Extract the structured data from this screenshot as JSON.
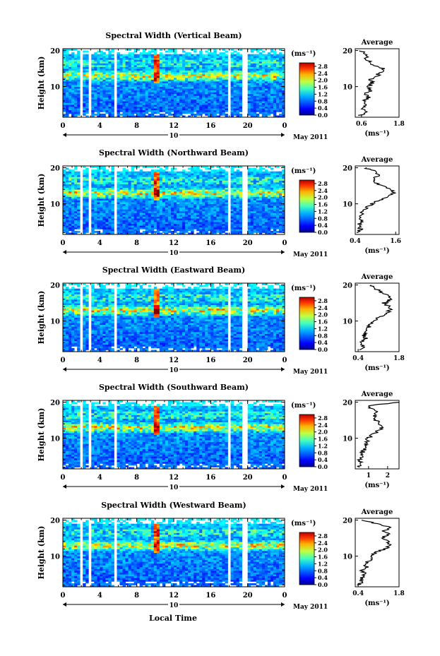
{
  "figure": {
    "xlabel": "Local Time",
    "date_label": "May 2011",
    "day_label": "10",
    "height_label": "Height (km)",
    "colorbar_unit": "(ms⁻¹)",
    "average_title": "Average",
    "average_unit": "(ms⁻¹)"
  },
  "chart_data": [
    {
      "type": "heatmap",
      "title": "Spectral Width (Vertical Beam)",
      "xlabel": "Local Time",
      "ylabel": "Height (km)",
      "x_ticks": [
        "0",
        "4",
        "8",
        "12",
        "16",
        "20",
        "0"
      ],
      "x_tick_values": [
        0,
        4,
        8,
        12,
        16,
        20,
        24
      ],
      "xlim": [
        0,
        24
      ],
      "y_ticks": [
        "20",
        "10"
      ],
      "y_tick_values": [
        20,
        10
      ],
      "ylim": [
        1.5,
        20.5
      ],
      "colorbar_ticks": [
        "2.8",
        "2.4",
        "2.0",
        "1.6",
        "1.2",
        "0.8",
        "0.4",
        "0.0"
      ],
      "colorbar_range": [
        0,
        3.0
      ],
      "data_gaps_hours": [
        [
          1.7,
          2.0
        ],
        [
          2.7,
          3.0
        ],
        [
          5.4,
          5.9
        ],
        [
          17.7,
          18.2
        ],
        [
          19.4,
          19.9
        ]
      ],
      "features": {
        "tropopause_km": 13,
        "enhancement_hours": [
          10.0,
          10.2
        ]
      },
      "average": {
        "title": "Average",
        "xlabel": "(ms⁻¹)",
        "x_ticks": [
          "0.6",
          "1.8"
        ],
        "x_tick_values": [
          0.6,
          1.8
        ],
        "xlim": [
          0.4,
          1.8
        ],
        "profile": {
          "height_km": [
            2,
            3,
            4,
            5,
            6,
            7,
            8,
            9,
            10,
            11,
            12,
            13,
            14,
            15,
            16,
            17,
            18,
            19,
            20
          ],
          "value": [
            0.55,
            0.75,
            0.6,
            0.8,
            0.65,
            0.85,
            0.7,
            0.9,
            0.85,
            0.95,
            0.9,
            1.1,
            1.2,
            1.3,
            1.0,
            0.85,
            0.75,
            0.7,
            0.6
          ]
        }
      }
    },
    {
      "type": "heatmap",
      "title": "Spectral Width (Northward Beam)",
      "xlabel": "Local Time",
      "ylabel": "Height (km)",
      "x_ticks": [
        "0",
        "4",
        "8",
        "12",
        "16",
        "20",
        "0"
      ],
      "x_tick_values": [
        0,
        4,
        8,
        12,
        16,
        20,
        24
      ],
      "xlim": [
        0,
        24
      ],
      "y_ticks": [
        "20",
        "10"
      ],
      "y_tick_values": [
        20,
        10
      ],
      "ylim": [
        1.5,
        20.5
      ],
      "colorbar_ticks": [
        "2.8",
        "2.4",
        "2.0",
        "1.6",
        "1.2",
        "0.8",
        "0.4",
        "0.0"
      ],
      "colorbar_range": [
        0,
        3.0
      ],
      "data_gaps_hours": [
        [
          1.7,
          2.0
        ],
        [
          2.7,
          3.0
        ],
        [
          5.4,
          5.9
        ],
        [
          17.7,
          18.2
        ],
        [
          19.4,
          19.9
        ]
      ],
      "features": {
        "tropopause_km": 13,
        "enhancement_hours": [
          10.0,
          10.2
        ]
      },
      "average": {
        "title": "Average",
        "xlabel": "(ms⁻¹)",
        "x_ticks": [
          "0.4",
          "1.6"
        ],
        "x_tick_values": [
          0.4,
          1.6
        ],
        "xlim": [
          0.4,
          1.7
        ],
        "profile": {
          "height_km": [
            2,
            3,
            4,
            5,
            6,
            7,
            8,
            9,
            10,
            11,
            12,
            13,
            14,
            15,
            16,
            17,
            18,
            19,
            20
          ],
          "value": [
            0.45,
            0.55,
            0.5,
            0.6,
            0.55,
            0.6,
            0.65,
            0.75,
            0.9,
            1.1,
            1.4,
            1.55,
            1.5,
            1.2,
            1.0,
            0.95,
            1.1,
            1.0,
            0.7
          ]
        }
      }
    },
    {
      "type": "heatmap",
      "title": "Spectral Width (Eastward Beam)",
      "xlabel": "Local Time",
      "ylabel": "Height (km)",
      "x_ticks": [
        "0",
        "4",
        "8",
        "12",
        "16",
        "20",
        "0"
      ],
      "x_tick_values": [
        0,
        4,
        8,
        12,
        16,
        20,
        24
      ],
      "xlim": [
        0,
        24
      ],
      "y_ticks": [
        "20",
        "10"
      ],
      "y_tick_values": [
        20,
        10
      ],
      "ylim": [
        1.5,
        20.5
      ],
      "colorbar_ticks": [
        "2.8",
        "2.4",
        "2.0",
        "1.6",
        "1.2",
        "0.8",
        "0.4",
        "0.0"
      ],
      "colorbar_range": [
        0,
        3.0
      ],
      "data_gaps_hours": [
        [
          1.7,
          2.0
        ],
        [
          2.7,
          3.0
        ],
        [
          5.4,
          5.9
        ],
        [
          17.7,
          18.2
        ],
        [
          19.4,
          19.9
        ]
      ],
      "features": {
        "tropopause_km": 13,
        "enhancement_hours": [
          10.0,
          10.2
        ]
      },
      "average": {
        "title": "Average",
        "xlabel": "(ms⁻¹)",
        "x_ticks": [
          "0.4",
          "1.8"
        ],
        "x_tick_values": [
          0.4,
          1.8
        ],
        "xlim": [
          0.3,
          1.8
        ],
        "profile": {
          "height_km": [
            2,
            3,
            4,
            5,
            6,
            7,
            8,
            9,
            10,
            11,
            12,
            13,
            14,
            15,
            16,
            17,
            18,
            19,
            20
          ],
          "value": [
            0.45,
            0.6,
            0.5,
            0.65,
            0.6,
            0.7,
            0.75,
            0.8,
            0.95,
            1.1,
            1.3,
            1.5,
            1.45,
            1.3,
            1.5,
            1.4,
            1.2,
            1.0,
            0.8
          ]
        }
      }
    },
    {
      "type": "heatmap",
      "title": "Spectral Width (Southward Beam)",
      "xlabel": "Local Time",
      "ylabel": "Height (km)",
      "x_ticks": [
        "0",
        "4",
        "8",
        "12",
        "16",
        "20",
        "0"
      ],
      "x_tick_values": [
        0,
        4,
        8,
        12,
        16,
        20,
        24
      ],
      "xlim": [
        0,
        24
      ],
      "y_ticks": [
        "20",
        "10"
      ],
      "y_tick_values": [
        20,
        10
      ],
      "ylim": [
        1.5,
        20.5
      ],
      "colorbar_ticks": [
        "2.8",
        "2.4",
        "2.0",
        "1.6",
        "1.2",
        "0.8",
        "0.4",
        "0.0"
      ],
      "colorbar_range": [
        0,
        3.0
      ],
      "data_gaps_hours": [
        [
          1.7,
          2.0
        ],
        [
          2.7,
          3.0
        ],
        [
          5.4,
          5.9
        ],
        [
          17.7,
          18.2
        ],
        [
          19.4,
          19.9
        ]
      ],
      "features": {
        "tropopause_km": 13,
        "enhancement_hours": [
          10.0,
          10.2
        ]
      },
      "average": {
        "title": "Average",
        "xlabel": "(ms⁻¹)",
        "x_ticks": [
          "1",
          "2"
        ],
        "x_tick_values": [
          1,
          2
        ],
        "xlim": [
          0.3,
          2.6
        ],
        "profile": {
          "height_km": [
            2,
            3,
            4,
            5,
            6,
            7,
            8,
            9,
            10,
            11,
            12,
            13,
            14,
            15,
            16,
            17,
            18,
            19,
            20
          ],
          "value": [
            0.5,
            0.6,
            0.55,
            0.7,
            0.65,
            0.8,
            0.85,
            0.9,
            1.0,
            1.2,
            1.5,
            1.75,
            1.6,
            1.4,
            1.3,
            1.45,
            1.2,
            1.0,
            2.5
          ]
        }
      }
    },
    {
      "type": "heatmap",
      "title": "Spectral Width (Westward Beam)",
      "xlabel": "Local Time",
      "ylabel": "Height (km)",
      "x_ticks": [
        "0",
        "4",
        "8",
        "12",
        "16",
        "20",
        "0"
      ],
      "x_tick_values": [
        0,
        4,
        8,
        12,
        16,
        20,
        24
      ],
      "xlim": [
        0,
        24
      ],
      "y_ticks": [
        "20",
        "10"
      ],
      "y_tick_values": [
        20,
        10
      ],
      "ylim": [
        1.5,
        20.5
      ],
      "colorbar_ticks": [
        "2.8",
        "2.4",
        "2.0",
        "1.6",
        "1.2",
        "0.8",
        "0.4",
        "0.0"
      ],
      "colorbar_range": [
        0,
        3.0
      ],
      "data_gaps_hours": [
        [
          1.7,
          2.0
        ],
        [
          2.7,
          3.0
        ],
        [
          5.4,
          5.9
        ],
        [
          17.7,
          18.2
        ],
        [
          19.4,
          19.9
        ]
      ],
      "features": {
        "tropopause_km": 13,
        "enhancement_hours": [
          10.0,
          10.2
        ]
      },
      "average": {
        "title": "Average",
        "xlabel": "(ms⁻¹)",
        "x_ticks": [
          "0.4",
          "1.8"
        ],
        "x_tick_values": [
          0.4,
          1.8
        ],
        "xlim": [
          0.3,
          1.8
        ],
        "profile": {
          "height_km": [
            2,
            3,
            4,
            5,
            6,
            7,
            8,
            9,
            10,
            11,
            12,
            13,
            14,
            15,
            16,
            17,
            18,
            19,
            20
          ],
          "value": [
            0.45,
            0.5,
            0.55,
            0.6,
            0.55,
            0.7,
            0.65,
            0.8,
            0.9,
            1.0,
            1.3,
            1.55,
            1.4,
            1.2,
            1.45,
            1.3,
            1.5,
            1.0,
            0.6
          ]
        }
      }
    }
  ]
}
